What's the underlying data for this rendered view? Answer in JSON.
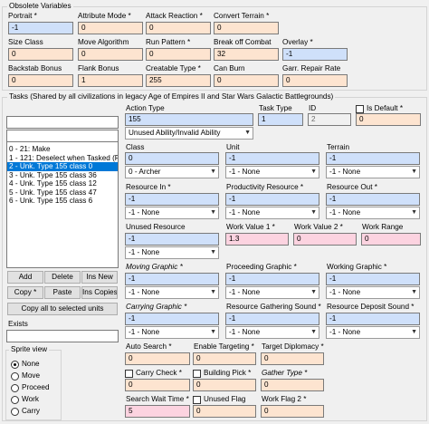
{
  "obsolete": {
    "title": "Obsolete Variables",
    "portrait": {
      "label": "Portrait *",
      "value": "-1"
    },
    "attribute_mode": {
      "label": "Attribute Mode *",
      "value": "0"
    },
    "attack_reaction": {
      "label": "Attack Reaction *",
      "value": "0"
    },
    "convert_terrain": {
      "label": "Convert Terrain *",
      "value": "0"
    },
    "size_class": {
      "label": "Size Class",
      "value": "0"
    },
    "move_algorithm": {
      "label": "Move Algorithm",
      "value": "0"
    },
    "run_pattern": {
      "label": "Run Pattern *",
      "value": "0"
    },
    "break_off_combat": {
      "label": "Break off Combat",
      "value": "32"
    },
    "overlay": {
      "label": "Overlay *",
      "value": "-1"
    },
    "backstab_bonus": {
      "label": "Backstab Bonus",
      "value": "0"
    },
    "flank_bonus": {
      "label": "Flank Bonus",
      "value": "1"
    },
    "creatable_type": {
      "label": "Creatable Type *",
      "value": "255"
    },
    "can_burn": {
      "label": "Can Burn",
      "value": "0"
    },
    "garr_repair_rate": {
      "label": "Garr. Repair Rate",
      "value": "0"
    }
  },
  "tasks": {
    "title": "Tasks (Shared by all civilizations in legacy Age of Empires II and Star Wars Galactic Battlegrounds)",
    "search_value": "",
    "filter_value": "",
    "items": [
      "0 - 21: Make",
      "1 - 121: Deselect when Tasked (F",
      "2 - Unk. Type 155 class 0",
      "3 - Unk. Type 155 class 36",
      "4 - Unk. Type 155 class 12",
      "5 - Unk. Type 155 class 47",
      "6 - Unk. Type 155 class 6"
    ],
    "selected_index": 2,
    "buttons": {
      "add": "Add",
      "delete": "Delete",
      "ins_new": "Ins New",
      "copy": "Copy *",
      "paste": "Paste",
      "ins_copies": "Ins Copies",
      "copy_all": "Copy all to selected units"
    },
    "exists_label": "Exists",
    "exists_value": ""
  },
  "sprite_view": {
    "title": "Sprite view",
    "options": [
      "None",
      "Move",
      "Proceed",
      "Work",
      "Carry"
    ],
    "selected": "None"
  },
  "task_editor": {
    "action_type": {
      "label": "Action Type",
      "value": "155",
      "combo": "Unused Ability/Invalid Ability"
    },
    "task_type": {
      "label": "Task Type",
      "value": "1"
    },
    "id": {
      "label": "ID",
      "value": "2"
    },
    "is_default": {
      "label": "Is Default *",
      "value": "0"
    },
    "class": {
      "label": "Class",
      "value": "0",
      "combo": "0 - Archer"
    },
    "unit": {
      "label": "Unit",
      "value": "-1",
      "combo": "-1 - None"
    },
    "terrain": {
      "label": "Terrain",
      "value": "-1",
      "combo": "-1 - None"
    },
    "resource_in": {
      "label": "Resource In *",
      "value": "-1",
      "combo": "-1 - None"
    },
    "productivity_resource": {
      "label": "Productivity Resource *",
      "value": "-1",
      "combo": "-1 - None"
    },
    "resource_out": {
      "label": "Resource Out *",
      "value": "-1",
      "combo": "-1 - None"
    },
    "unused_resource": {
      "label": "Unused Resource",
      "value": "-1",
      "combo": "-1 - None"
    },
    "work_value_1": {
      "label": "Work Value 1 *",
      "value": "1.3"
    },
    "work_value_2": {
      "label": "Work Value 2 *",
      "value": "0"
    },
    "work_range": {
      "label": "Work Range",
      "value": "0"
    },
    "moving_graphic": {
      "label": "Moving Graphic *",
      "value": "-1",
      "combo": "-1 - None"
    },
    "proceeding_graphic": {
      "label": "Proceeding Graphic *",
      "value": "-1",
      "combo": "-1 - None"
    },
    "working_graphic": {
      "label": "Working Graphic *",
      "value": "-1",
      "combo": "-1 - None"
    },
    "carrying_graphic": {
      "label": "Carrying Graphic *",
      "value": "-1",
      "combo": "-1 - None"
    },
    "resource_gathering_sound": {
      "label": "Resource Gathering Sound *",
      "value": "-1",
      "combo": "-1 - None"
    },
    "resource_deposit_sound": {
      "label": "Resource Deposit Sound *",
      "value": "-1",
      "combo": "-1 - None"
    },
    "auto_search": {
      "label": "Auto Search *",
      "value": "0"
    },
    "enable_targeting": {
      "label": "Enable Targeting *",
      "value": "0"
    },
    "target_diplomacy": {
      "label": "Target Diplomacy *",
      "value": "0"
    },
    "carry_check": {
      "label": "Carry Check *",
      "value": "0"
    },
    "building_pick": {
      "label": "Building Pick *",
      "value": "0"
    },
    "gather_type": {
      "label": "Gather Type *",
      "value": "0"
    },
    "search_wait_time": {
      "label": "Search Wait Time *",
      "value": "5"
    },
    "unused_flag": {
      "label": "Unused Flag",
      "value": "0"
    },
    "work_flag_2": {
      "label": "Work Flag 2 *",
      "value": "0"
    }
  }
}
